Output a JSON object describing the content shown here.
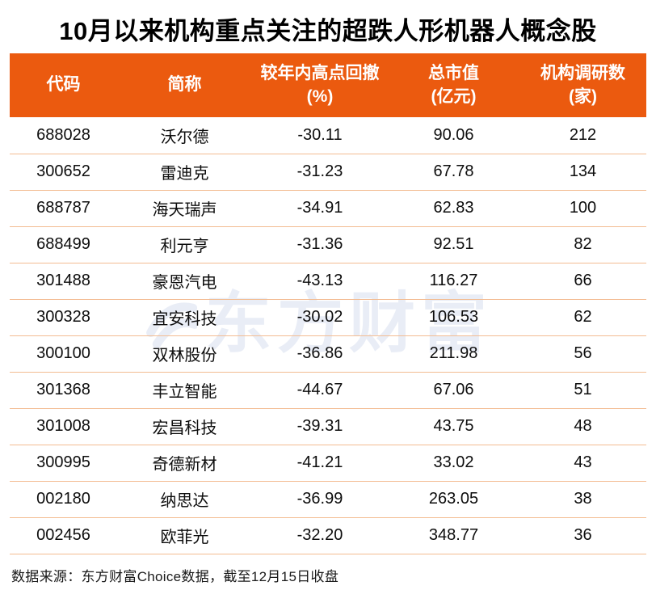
{
  "title": "10月以来机构重点关注的超跌人形机器人概念股",
  "watermark": {
    "text": "东方财富"
  },
  "footer": "数据来源：东方财富Choice数据，截至12月15日收盘",
  "colors": {
    "header_bg": "#eb5a0f",
    "divider": "#f3bc92",
    "watermark": "#e9edf6",
    "header_text": "#ffffff",
    "body_text": "#0d0d0d"
  },
  "chart_data": {
    "type": "table",
    "title": "10月以来机构重点关注的超跌人形机器人概念股",
    "columns": [
      {
        "key": "code",
        "label": "代码",
        "unit": ""
      },
      {
        "key": "name",
        "label": "简称",
        "unit": ""
      },
      {
        "key": "drawdown_from_year_high_pct",
        "label": "较年内高点回撤",
        "unit": "(%)"
      },
      {
        "key": "total_market_cap_100m",
        "label": "总市值",
        "unit": "(亿元)"
      },
      {
        "key": "institution_research_count",
        "label": "机构调研数",
        "unit": "(家)"
      }
    ],
    "rows": [
      [
        "688028",
        "沃尔德",
        "-30.11",
        "90.06",
        "212"
      ],
      [
        "300652",
        "雷迪克",
        "-31.23",
        "67.78",
        "134"
      ],
      [
        "688787",
        "海天瑞声",
        "-34.91",
        "62.83",
        "100"
      ],
      [
        "688499",
        "利元亨",
        "-31.36",
        "92.51",
        "82"
      ],
      [
        "301488",
        "豪恩汽电",
        "-43.13",
        "116.27",
        "66"
      ],
      [
        "300328",
        "宜安科技",
        "-30.02",
        "106.53",
        "62"
      ],
      [
        "300100",
        "双林股份",
        "-36.86",
        "211.98",
        "56"
      ],
      [
        "301368",
        "丰立智能",
        "-44.67",
        "67.06",
        "51"
      ],
      [
        "301008",
        "宏昌科技",
        "-39.31",
        "43.75",
        "48"
      ],
      [
        "300995",
        "奇德新材",
        "-41.21",
        "33.02",
        "43"
      ],
      [
        "002180",
        "纳思达",
        "-36.99",
        "263.05",
        "38"
      ],
      [
        "002456",
        "欧菲光",
        "-32.20",
        "348.77",
        "36"
      ]
    ]
  }
}
